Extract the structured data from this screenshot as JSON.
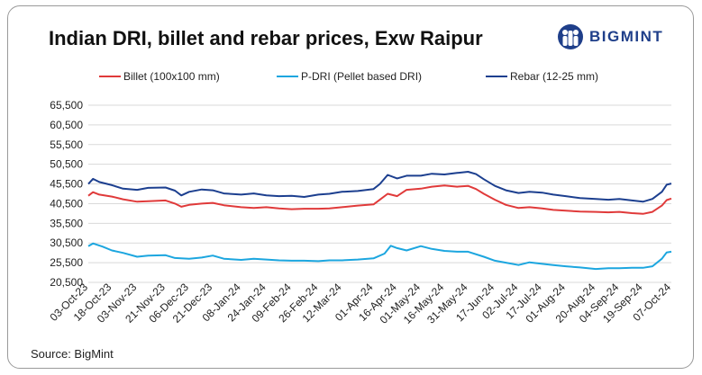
{
  "header": {
    "title": "Indian DRI, billet and rebar prices, Exw Raipur",
    "brand": "BIGMINT"
  },
  "footer": {
    "source": "Source: BigMint"
  },
  "colors": {
    "billet": "#e03a3a",
    "pdri": "#1ca6df",
    "rebar": "#1c3f8f",
    "grid": "#d9d9d9",
    "brand": "#1f3f8a"
  },
  "chart_data": {
    "type": "line",
    "title": "Indian DRI, billet and rebar prices, Exw Raipur",
    "ylim": [
      20500,
      65500
    ],
    "yticks": [
      "20,500",
      "25,500",
      "30,500",
      "35,500",
      "40,500",
      "45,500",
      "50,500",
      "55,500",
      "60,500",
      "65,500"
    ],
    "ytick_values": [
      20500,
      25500,
      30500,
      35500,
      40500,
      45500,
      50500,
      55500,
      60500,
      65500
    ],
    "xlim": [
      "2023-10-03",
      "2024-10-07"
    ],
    "xticks": [
      "03-Oct-23",
      "18-Oct-23",
      "03-Nov-23",
      "21-Nov-23",
      "06-Dec-23",
      "21-Dec-23",
      "08-Jan-24",
      "24-Jan-24",
      "09-Feb-24",
      "26-Feb-24",
      "12-Mar-24",
      "01-Apr-24",
      "16-Apr-24",
      "01-May-24",
      "16-May-24",
      "31-May-24",
      "17-Jun-24",
      "02-Jul-24",
      "17-Jul-24",
      "01-Aug-24",
      "20-Aug-24",
      "04-Sep-24",
      "19-Sep-24",
      "07-Oct-24"
    ],
    "grid": true,
    "legend_position": "top",
    "series": [
      {
        "name": "Billet (100x100 mm)",
        "key": "billet",
        "x": [
          "2023-10-03",
          "2023-10-06",
          "2023-10-10",
          "2023-10-18",
          "2023-10-25",
          "2023-11-03",
          "2023-11-10",
          "2023-11-21",
          "2023-11-27",
          "2023-12-01",
          "2023-12-06",
          "2023-12-14",
          "2023-12-21",
          "2023-12-28",
          "2024-01-08",
          "2024-01-16",
          "2024-01-24",
          "2024-02-01",
          "2024-02-09",
          "2024-02-17",
          "2024-02-26",
          "2024-03-04",
          "2024-03-12",
          "2024-03-22",
          "2024-04-01",
          "2024-04-05",
          "2024-04-10",
          "2024-04-16",
          "2024-04-22",
          "2024-05-01",
          "2024-05-08",
          "2024-05-16",
          "2024-05-24",
          "2024-05-31",
          "2024-06-05",
          "2024-06-10",
          "2024-06-17",
          "2024-06-24",
          "2024-07-02",
          "2024-07-09",
          "2024-07-17",
          "2024-07-24",
          "2024-08-01",
          "2024-08-10",
          "2024-08-20",
          "2024-08-28",
          "2024-09-04",
          "2024-09-12",
          "2024-09-19",
          "2024-09-25",
          "2024-10-01",
          "2024-10-04",
          "2024-10-07"
        ],
        "y": [
          42500,
          43400,
          42800,
          42300,
          41600,
          41000,
          41100,
          41300,
          40500,
          39700,
          40200,
          40500,
          40700,
          40100,
          39600,
          39400,
          39600,
          39300,
          39100,
          39200,
          39200,
          39300,
          39600,
          40000,
          40300,
          41500,
          43000,
          42400,
          44000,
          44300,
          44800,
          45100,
          44800,
          45000,
          44200,
          43000,
          41500,
          40200,
          39400,
          39600,
          39300,
          38900,
          38700,
          38500,
          38400,
          38300,
          38400,
          38100,
          37900,
          38400,
          40000,
          41400,
          41800
        ]
      },
      {
        "name": "P-DRI (Pellet based DRI)",
        "key": "pdri",
        "x": [
          "2023-10-03",
          "2023-10-06",
          "2023-10-12",
          "2023-10-18",
          "2023-10-25",
          "2023-11-03",
          "2023-11-10",
          "2023-11-21",
          "2023-11-27",
          "2023-12-06",
          "2023-12-14",
          "2023-12-21",
          "2023-12-28",
          "2024-01-08",
          "2024-01-16",
          "2024-01-24",
          "2024-02-01",
          "2024-02-09",
          "2024-02-17",
          "2024-02-26",
          "2024-03-04",
          "2024-03-12",
          "2024-03-22",
          "2024-04-01",
          "2024-04-08",
          "2024-04-12",
          "2024-04-16",
          "2024-04-22",
          "2024-05-01",
          "2024-05-08",
          "2024-05-16",
          "2024-05-24",
          "2024-05-31",
          "2024-06-10",
          "2024-06-17",
          "2024-06-24",
          "2024-07-02",
          "2024-07-09",
          "2024-07-17",
          "2024-07-24",
          "2024-08-01",
          "2024-08-10",
          "2024-08-20",
          "2024-08-28",
          "2024-09-04",
          "2024-09-12",
          "2024-09-19",
          "2024-09-25",
          "2024-10-01",
          "2024-10-04",
          "2024-10-07"
        ],
        "y": [
          29700,
          30400,
          29600,
          28600,
          28000,
          27000,
          27300,
          27400,
          26700,
          26500,
          26800,
          27300,
          26500,
          26200,
          26500,
          26300,
          26100,
          26000,
          26000,
          25900,
          26100,
          26100,
          26300,
          26600,
          27800,
          29800,
          29200,
          28600,
          29700,
          29000,
          28500,
          28300,
          28300,
          27000,
          26000,
          25500,
          24900,
          25600,
          25200,
          24900,
          24600,
          24300,
          23900,
          24100,
          24100,
          24200,
          24200,
          24600,
          26500,
          28100,
          28300
        ]
      },
      {
        "name": "Rebar (12-25 mm)",
        "key": "rebar",
        "x": [
          "2023-10-03",
          "2023-10-06",
          "2023-10-10",
          "2023-10-18",
          "2023-10-25",
          "2023-11-03",
          "2023-11-10",
          "2023-11-21",
          "2023-11-27",
          "2023-12-01",
          "2023-12-06",
          "2023-12-14",
          "2023-12-21",
          "2023-12-28",
          "2024-01-08",
          "2024-01-16",
          "2024-01-24",
          "2024-02-01",
          "2024-02-09",
          "2024-02-17",
          "2024-02-26",
          "2024-03-04",
          "2024-03-12",
          "2024-03-22",
          "2024-04-01",
          "2024-04-05",
          "2024-04-10",
          "2024-04-16",
          "2024-04-22",
          "2024-05-01",
          "2024-05-08",
          "2024-05-16",
          "2024-05-24",
          "2024-05-31",
          "2024-06-05",
          "2024-06-10",
          "2024-06-17",
          "2024-06-24",
          "2024-07-02",
          "2024-07-09",
          "2024-07-17",
          "2024-07-24",
          "2024-08-01",
          "2024-08-10",
          "2024-08-20",
          "2024-08-28",
          "2024-09-04",
          "2024-09-12",
          "2024-09-19",
          "2024-09-25",
          "2024-10-01",
          "2024-10-04",
          "2024-10-07"
        ],
        "y": [
          45500,
          46800,
          46000,
          45200,
          44300,
          44000,
          44500,
          44600,
          43800,
          42600,
          43500,
          44100,
          43900,
          43100,
          42800,
          43100,
          42600,
          42400,
          42500,
          42200,
          42800,
          43000,
          43500,
          43700,
          44200,
          45500,
          47800,
          46900,
          47600,
          47600,
          48100,
          47900,
          48300,
          48600,
          48000,
          46700,
          45000,
          43900,
          43200,
          43500,
          43300,
          42800,
          42400,
          41900,
          41700,
          41500,
          41700,
          41300,
          41000,
          41700,
          43500,
          45300,
          45600
        ]
      }
    ]
  }
}
